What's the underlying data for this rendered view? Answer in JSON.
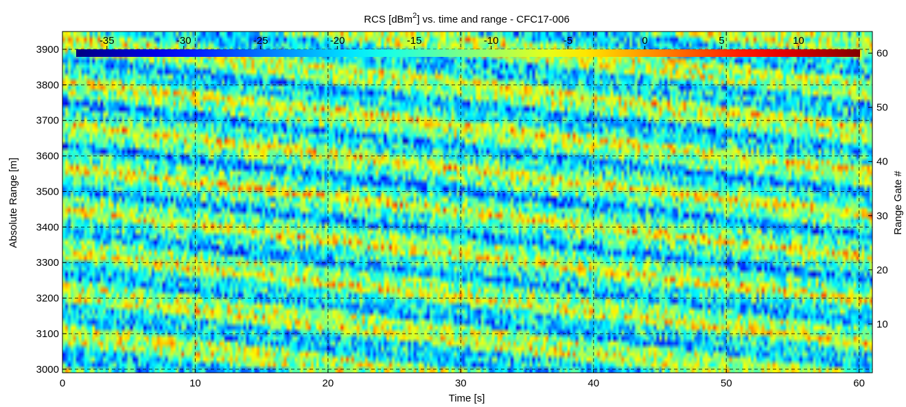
{
  "chart_data": {
    "type": "heatmap",
    "title": {
      "prefix": "RCS [dBm",
      "superscript": "2",
      "suffix": "] vs. time and range - CFC17-006"
    },
    "xlabel": "Time [s]",
    "ylabel": "Absolute Range [m]",
    "y2label": "Range Gate #",
    "xlim": [
      0,
      61
    ],
    "ylim": [
      2990,
      3950
    ],
    "y2lim": [
      1,
      64
    ],
    "x_ticks": [
      0,
      10,
      20,
      30,
      40,
      50,
      60
    ],
    "y_ticks": [
      3000,
      3100,
      3200,
      3300,
      3400,
      3500,
      3600,
      3700,
      3800,
      3900
    ],
    "y2_ticks": [
      10,
      20,
      30,
      40,
      50,
      60
    ],
    "grid": true,
    "colormap": "jet",
    "colorbar": {
      "location": "inside top",
      "range": [
        -37,
        14
      ],
      "ticks": [
        -35,
        -30,
        -25,
        -20,
        -15,
        -10,
        -5,
        0,
        5,
        10
      ]
    },
    "z_range": [
      -37,
      14
    ],
    "z_description": "RCS in dBm² per time sample and range gate; noisy speckle field with several diagonal high-RCS (red) and low-RCS (blue) stripes descending in range as time increases"
  }
}
